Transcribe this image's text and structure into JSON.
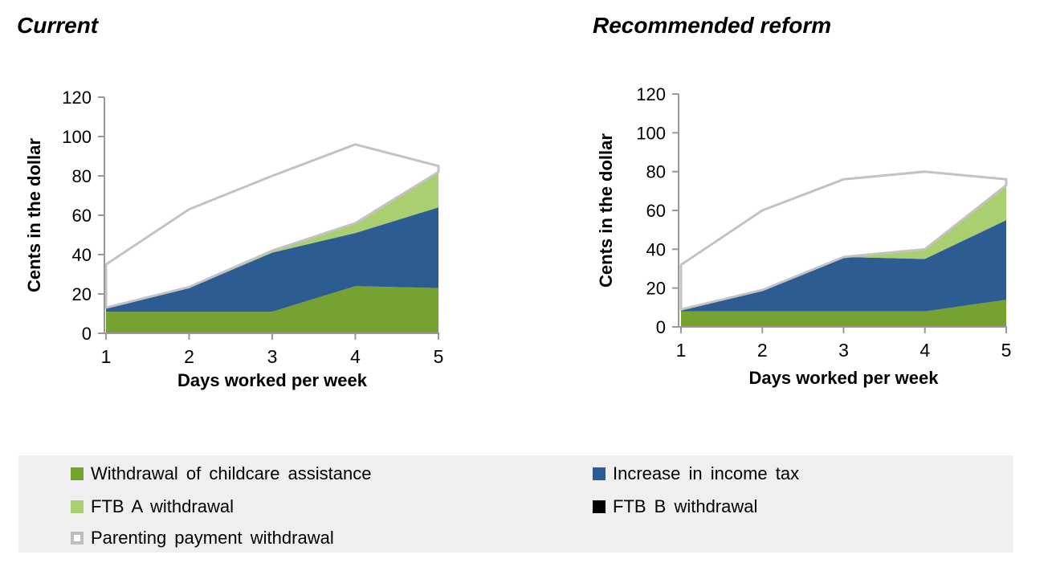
{
  "titles": {
    "current": "Current",
    "reform": "Recommended reform"
  },
  "legend": {
    "background": "#EFEFEF",
    "items": [
      {
        "label": "Withdrawal of childcare assistance",
        "color": "#76A232",
        "marker": "filled"
      },
      {
        "label": "Increase in income tax",
        "color": "#2C5C92",
        "marker": "filled"
      },
      {
        "label": "FTB A withdrawal",
        "color": "#A9CF70",
        "marker": "filled"
      },
      {
        "label": "FTB B withdrawal",
        "color": "#000000",
        "marker": "filled"
      },
      {
        "label": "Parenting payment withdrawal",
        "color": "#FFFFFF",
        "marker": "outlined",
        "border": "#BDBDBD"
      }
    ]
  },
  "chart_data": [
    {
      "type": "area",
      "stacked": true,
      "title": "Current",
      "xlabel": "Days worked per week",
      "ylabel": "Cents in the dollar",
      "x": [
        1,
        2,
        3,
        4,
        5
      ],
      "ylim": [
        0,
        120
      ],
      "y_ticks": [
        0,
        20,
        40,
        60,
        80,
        100,
        120
      ],
      "grid": false,
      "legend_position": "bottom",
      "series": [
        {
          "name": "Withdrawal of childcare assistance",
          "color": "#76A232",
          "values": [
            11,
            11,
            11,
            24,
            23
          ]
        },
        {
          "name": "Increase in income tax",
          "color": "#2C5C92",
          "values": [
            2,
            12,
            30,
            27,
            41
          ]
        },
        {
          "name": "FTB A withdrawal",
          "color": "#A9CF70",
          "values": [
            0,
            0.5,
            1,
            5,
            18
          ]
        },
        {
          "name": "FTB B withdrawal",
          "color": "#000000",
          "values": [
            0,
            0,
            0,
            0,
            0
          ]
        },
        {
          "name": "Parenting payment withdrawal",
          "color": "#FFFFFF",
          "stroke": "#C3C3C3",
          "values": [
            22,
            39.5,
            38,
            40,
            3
          ]
        }
      ]
    },
    {
      "type": "area",
      "stacked": true,
      "title": "Recommended reform",
      "xlabel": "Days worked per week",
      "ylabel": "Cents in the dollar",
      "x": [
        1,
        2,
        3,
        4,
        5
      ],
      "ylim": [
        0,
        120
      ],
      "y_ticks": [
        0,
        20,
        40,
        60,
        80,
        100,
        120
      ],
      "grid": false,
      "legend_position": "bottom",
      "series": [
        {
          "name": "Withdrawal of childcare assistance",
          "color": "#76A232",
          "values": [
            8,
            8,
            8,
            8,
            14
          ]
        },
        {
          "name": "Increase in income tax",
          "color": "#2C5C92",
          "values": [
            1,
            11,
            28,
            27,
            41
          ]
        },
        {
          "name": "FTB A withdrawal",
          "color": "#A9CF70",
          "values": [
            0,
            0,
            0,
            5,
            18
          ]
        },
        {
          "name": "FTB B withdrawal",
          "color": "#000000",
          "values": [
            0,
            0,
            0,
            0,
            0
          ]
        },
        {
          "name": "Parenting payment withdrawal",
          "color": "#FFFFFF",
          "stroke": "#C3C3C3",
          "values": [
            23,
            41,
            40,
            40,
            3
          ]
        }
      ]
    }
  ]
}
